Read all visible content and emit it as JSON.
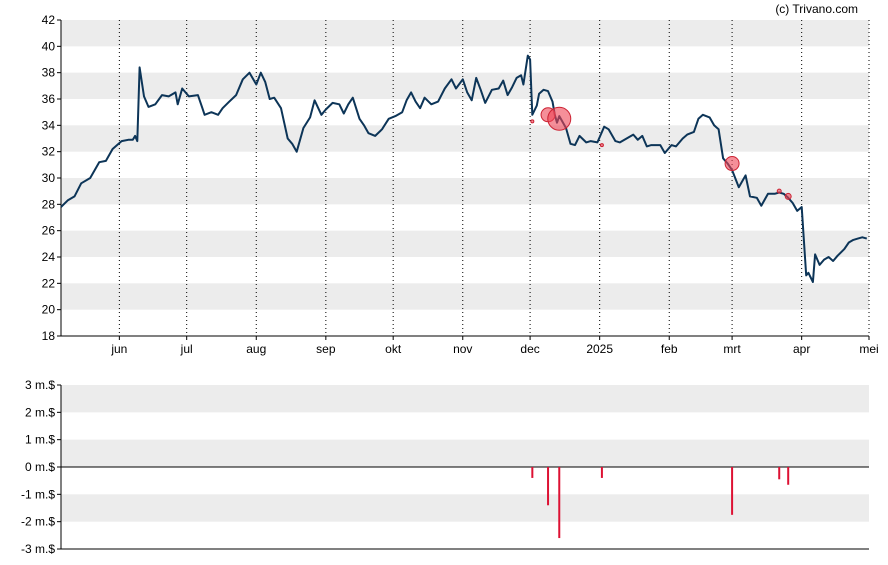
{
  "credit": "(c) Trivano.com",
  "colors": {
    "price_line": "#0d3558",
    "band": "#ececec",
    "bubble_fill": "#ee4455",
    "bubble_stroke": "#cc2233",
    "bar": "#dd1133",
    "axis": "#000000",
    "grid": "#000000"
  },
  "chart_data": [
    {
      "type": "line",
      "title": "",
      "xlabel": "",
      "ylabel": "",
      "ylim": [
        18,
        42
      ],
      "yticks": [
        "18",
        "20",
        "22",
        "24",
        "26",
        "28",
        "30",
        "32",
        "34",
        "36",
        "38",
        "40",
        "42"
      ],
      "xlim": [
        "2024-05-06",
        "2025-05-01"
      ],
      "x_tick_labels": [
        "jun",
        "jul",
        "aug",
        "sep",
        "okt",
        "nov",
        "dec",
        "2025",
        "feb",
        "mrt",
        "apr",
        "mei"
      ],
      "grid": "horizontal bands + dotted vertical lines at month starts",
      "series": [
        {
          "points": [
            [
              "2024-05-06",
              27.8
            ],
            [
              "2024-05-09",
              28.3
            ],
            [
              "2024-05-12",
              28.6
            ],
            [
              "2024-05-15",
              29.6
            ],
            [
              "2024-05-19",
              30.0
            ],
            [
              "2024-05-23",
              31.2
            ],
            [
              "2024-05-26",
              31.3
            ],
            [
              "2024-05-29",
              32.2
            ],
            [
              "2024-06-02",
              32.8
            ],
            [
              "2024-06-05",
              32.9
            ],
            [
              "2024-06-07",
              32.9
            ],
            [
              "2024-06-08",
              33.2
            ],
            [
              "2024-06-09",
              32.8
            ],
            [
              "2024-06-10",
              38.4
            ],
            [
              "2024-06-12",
              36.2
            ],
            [
              "2024-06-14",
              35.4
            ],
            [
              "2024-06-17",
              35.6
            ],
            [
              "2024-06-20",
              36.3
            ],
            [
              "2024-06-23",
              36.2
            ],
            [
              "2024-06-26",
              36.5
            ],
            [
              "2024-06-27",
              35.6
            ],
            [
              "2024-06-29",
              36.8
            ],
            [
              "2024-07-02",
              36.2
            ],
            [
              "2024-07-06",
              36.3
            ],
            [
              "2024-07-08",
              35.3
            ],
            [
              "2024-07-09",
              34.8
            ],
            [
              "2024-07-12",
              35.0
            ],
            [
              "2024-07-15",
              34.8
            ],
            [
              "2024-07-17",
              35.3
            ],
            [
              "2024-07-20",
              35.8
            ],
            [
              "2024-07-23",
              36.3
            ],
            [
              "2024-07-26",
              37.5
            ],
            [
              "2024-07-29",
              38.0
            ],
            [
              "2024-08-01",
              37.1
            ],
            [
              "2024-08-03",
              38.0
            ],
            [
              "2024-08-05",
              37.3
            ],
            [
              "2024-08-07",
              36.0
            ],
            [
              "2024-08-09",
              36.1
            ],
            [
              "2024-08-12",
              35.3
            ],
            [
              "2024-08-15",
              33.0
            ],
            [
              "2024-08-17",
              32.6
            ],
            [
              "2024-08-19",
              32.0
            ],
            [
              "2024-08-22",
              33.8
            ],
            [
              "2024-08-25",
              34.6
            ],
            [
              "2024-08-27",
              35.9
            ],
            [
              "2024-08-30",
              34.8
            ],
            [
              "2024-09-01",
              35.2
            ],
            [
              "2024-09-04",
              35.7
            ],
            [
              "2024-09-07",
              35.6
            ],
            [
              "2024-09-09",
              34.9
            ],
            [
              "2024-09-11",
              35.6
            ],
            [
              "2024-09-13",
              36.1
            ],
            [
              "2024-09-16",
              34.5
            ],
            [
              "2024-09-18",
              34.0
            ],
            [
              "2024-09-20",
              33.4
            ],
            [
              "2024-09-23",
              33.2
            ],
            [
              "2024-09-26",
              33.7
            ],
            [
              "2024-09-29",
              34.5
            ],
            [
              "2024-10-02",
              34.7
            ],
            [
              "2024-10-05",
              35.0
            ],
            [
              "2024-10-07",
              35.9
            ],
            [
              "2024-10-09",
              36.5
            ],
            [
              "2024-10-11",
              35.8
            ],
            [
              "2024-10-13",
              35.3
            ],
            [
              "2024-10-15",
              36.1
            ],
            [
              "2024-10-18",
              35.6
            ],
            [
              "2024-10-21",
              35.8
            ],
            [
              "2024-10-24",
              36.8
            ],
            [
              "2024-10-27",
              37.5
            ],
            [
              "2024-10-29",
              36.8
            ],
            [
              "2024-11-01",
              37.5
            ],
            [
              "2024-11-03",
              36.5
            ],
            [
              "2024-11-05",
              35.9
            ],
            [
              "2024-11-07",
              37.6
            ],
            [
              "2024-11-09",
              36.7
            ],
            [
              "2024-11-11",
              35.7
            ],
            [
              "2024-11-14",
              36.7
            ],
            [
              "2024-11-17",
              36.8
            ],
            [
              "2024-11-19",
              37.4
            ],
            [
              "2024-11-21",
              36.3
            ],
            [
              "2024-11-23",
              36.9
            ],
            [
              "2024-11-25",
              37.6
            ],
            [
              "2024-11-27",
              37.8
            ],
            [
              "2024-11-28",
              37.1
            ],
            [
              "2024-11-30",
              39.3
            ],
            [
              "2024-12-01",
              39.0
            ],
            [
              "2024-12-02",
              34.8
            ],
            [
              "2024-12-04",
              35.5
            ],
            [
              "2024-12-05",
              36.4
            ],
            [
              "2024-12-07",
              36.7
            ],
            [
              "2024-12-09",
              36.6
            ],
            [
              "2024-12-11",
              35.8
            ],
            [
              "2024-12-12",
              34.8
            ],
            [
              "2024-12-13",
              34.2
            ],
            [
              "2024-12-14",
              34.7
            ],
            [
              "2024-12-17",
              33.8
            ],
            [
              "2024-12-19",
              32.6
            ],
            [
              "2024-12-21",
              32.5
            ],
            [
              "2024-12-23",
              33.2
            ],
            [
              "2024-12-26",
              32.7
            ],
            [
              "2024-12-28",
              32.8
            ],
            [
              "2024-12-31",
              32.7
            ],
            [
              "2025-01-03",
              33.9
            ],
            [
              "2025-01-05",
              33.7
            ],
            [
              "2025-01-08",
              32.8
            ],
            [
              "2025-01-10",
              32.7
            ],
            [
              "2025-01-13",
              33.0
            ],
            [
              "2025-01-16",
              33.3
            ],
            [
              "2025-01-18",
              32.9
            ],
            [
              "2025-01-20",
              33.2
            ],
            [
              "2025-01-22",
              32.4
            ],
            [
              "2025-01-24",
              32.5
            ],
            [
              "2025-01-28",
              32.5
            ],
            [
              "2025-01-30",
              31.9
            ],
            [
              "2025-02-02",
              32.5
            ],
            [
              "2025-02-04",
              32.4
            ],
            [
              "2025-02-07",
              33.0
            ],
            [
              "2025-02-09",
              33.3
            ],
            [
              "2025-02-12",
              33.5
            ],
            [
              "2025-02-14",
              34.5
            ],
            [
              "2025-02-16",
              34.8
            ],
            [
              "2025-02-19",
              34.6
            ],
            [
              "2025-02-21",
              34.0
            ],
            [
              "2025-02-23",
              33.7
            ],
            [
              "2025-02-25",
              31.5
            ],
            [
              "2025-02-27",
              31.1
            ],
            [
              "2025-03-01",
              30.6
            ],
            [
              "2025-03-04",
              29.3
            ],
            [
              "2025-03-07",
              30.2
            ],
            [
              "2025-03-09",
              28.6
            ],
            [
              "2025-03-12",
              28.5
            ],
            [
              "2025-03-14",
              27.9
            ],
            [
              "2025-03-17",
              28.8
            ],
            [
              "2025-03-20",
              28.8
            ],
            [
              "2025-03-22",
              28.9
            ],
            [
              "2025-03-24",
              28.8
            ],
            [
              "2025-03-26",
              28.5
            ],
            [
              "2025-03-28",
              28.1
            ],
            [
              "2025-03-30",
              27.5
            ],
            [
              "2025-04-01",
              27.8
            ],
            [
              "2025-04-03",
              22.6
            ],
            [
              "2025-04-04",
              22.8
            ],
            [
              "2025-04-06",
              22.1
            ],
            [
              "2025-04-07",
              24.2
            ],
            [
              "2025-04-09",
              23.4
            ],
            [
              "2025-04-11",
              23.8
            ],
            [
              "2025-04-13",
              24.0
            ],
            [
              "2025-04-15",
              23.7
            ],
            [
              "2025-04-17",
              24.1
            ],
            [
              "2025-04-20",
              24.6
            ],
            [
              "2025-04-22",
              25.1
            ],
            [
              "2025-04-24",
              25.3
            ],
            [
              "2025-04-26",
              25.4
            ],
            [
              "2025-04-28",
              25.5
            ],
            [
              "2025-04-30",
              25.4
            ]
          ]
        }
      ],
      "markers": [
        {
          "date": "2024-12-02",
          "price": 34.3,
          "size": 1.5
        },
        {
          "date": "2024-12-09",
          "price": 34.8,
          "size": 7
        },
        {
          "date": "2024-12-14",
          "price": 34.5,
          "size": 11.5
        },
        {
          "date": "2025-01-02",
          "price": 32.5,
          "size": 1.5
        },
        {
          "date": "2025-03-01",
          "price": 31.1,
          "size": 7
        },
        {
          "date": "2025-03-22",
          "price": 29.0,
          "size": 2
        },
        {
          "date": "2025-03-26",
          "price": 28.6,
          "size": 3
        }
      ]
    },
    {
      "type": "bar",
      "title": "",
      "xlabel": "",
      "ylabel": "",
      "ylim": [
        -3,
        3
      ],
      "yticks": [
        "-3 m.$",
        "-2 m.$",
        "-1 m.$",
        "0 m.$",
        "1 m.$",
        "2 m.$",
        "3 m.$"
      ],
      "xlim": [
        "2024-05-06",
        "2025-05-01"
      ],
      "grid": "horizontal bands",
      "series": [
        {
          "points": [
            [
              "2024-12-02",
              -0.4
            ],
            [
              "2024-12-09",
              -1.4
            ],
            [
              "2024-12-14",
              -2.6
            ],
            [
              "2025-01-02",
              -0.4
            ],
            [
              "2025-03-01",
              -1.75
            ],
            [
              "2025-03-22",
              -0.45
            ],
            [
              "2025-03-26",
              -0.65
            ]
          ]
        }
      ]
    }
  ]
}
